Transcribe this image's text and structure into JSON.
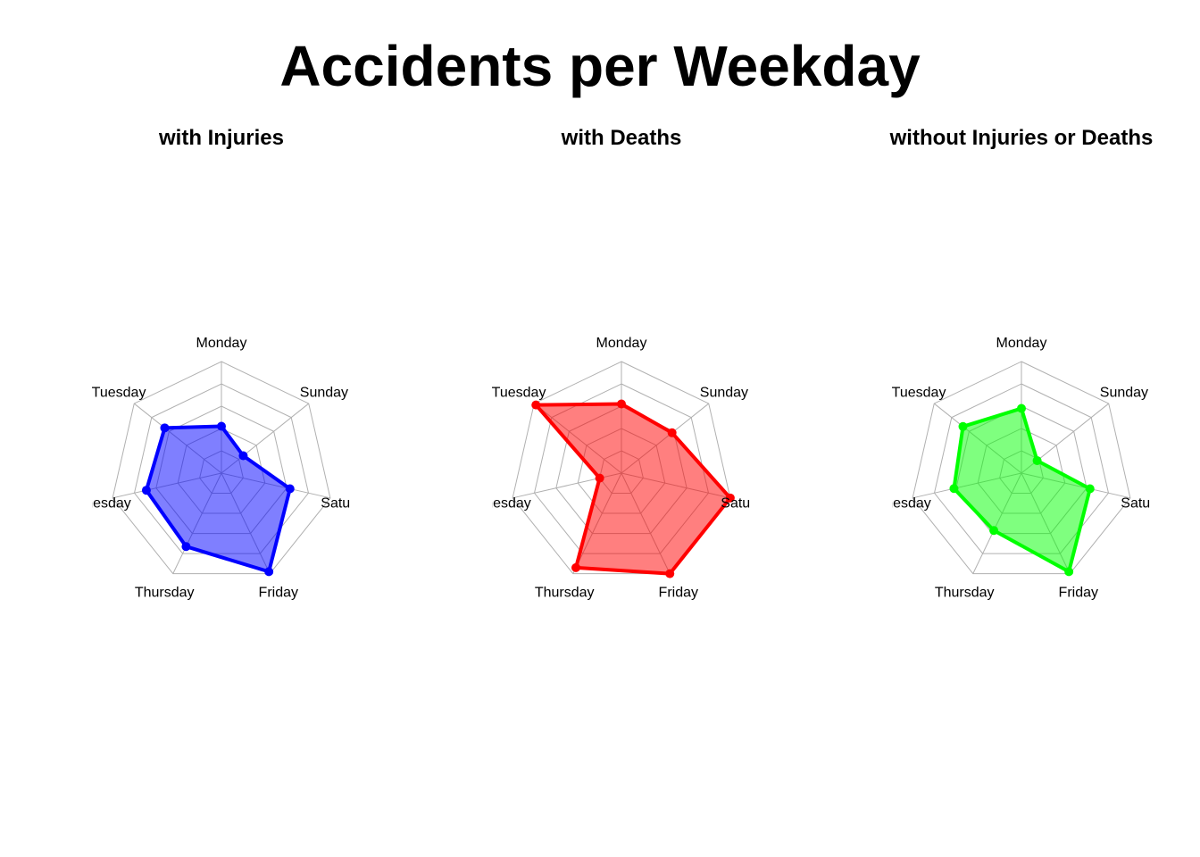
{
  "title": "Accidents per Weekday",
  "chart_data": [
    {
      "type": "radar",
      "title": "with Injuries",
      "axes": [
        "Monday",
        "Sunday",
        "Saturday",
        "Friday",
        "Thursday",
        "Wednesday",
        "Tuesday"
      ],
      "range": [
        0,
        1
      ],
      "rings": 5,
      "values": [
        0.42,
        0.25,
        0.63,
        0.98,
        0.73,
        0.69,
        0.65
      ],
      "color": "#0000ff",
      "fill": "rgba(0,0,255,0.5)"
    },
    {
      "type": "radar",
      "title": "with Deaths",
      "axes": [
        "Monday",
        "Sunday",
        "Saturday",
        "Friday",
        "Thursday",
        "Wednesday",
        "Tuesday"
      ],
      "range": [
        0,
        1
      ],
      "rings": 5,
      "values": [
        0.62,
        0.58,
        1.0,
        1.0,
        0.94,
        0.2,
        0.98
      ],
      "color": "#ff0000",
      "fill": "rgba(255,0,0,0.5)"
    },
    {
      "type": "radar",
      "title": "without Injuries or Deaths",
      "axes": [
        "Monday",
        "Sunday",
        "Saturday",
        "Friday",
        "Thursday",
        "Wednesday",
        "Tuesday"
      ],
      "range": [
        0,
        1
      ],
      "rings": 5,
      "values": [
        0.58,
        0.18,
        0.63,
        0.98,
        0.57,
        0.62,
        0.67
      ],
      "color": "#00ff00",
      "fill": "rgba(0,255,0,0.5)"
    }
  ]
}
